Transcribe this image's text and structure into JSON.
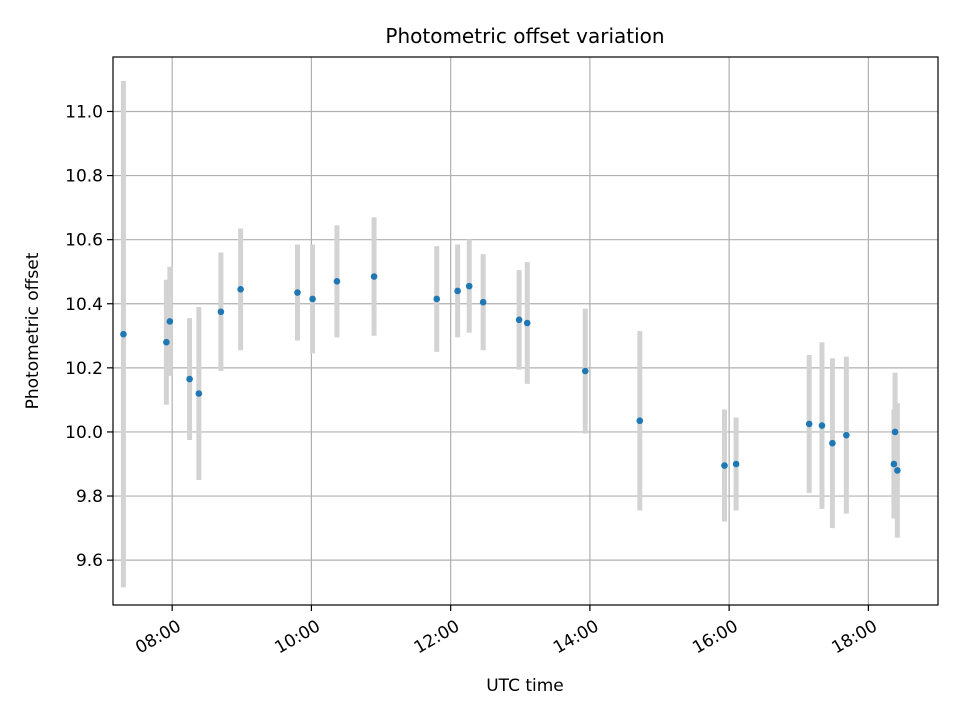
{
  "chart_data": {
    "type": "scatter",
    "title": "Photometric offset variation",
    "xlabel": "UTC time",
    "ylabel": "Photometric offset",
    "x_tick_labels": [
      "08:00",
      "10:00",
      "12:00",
      "14:00",
      "16:00",
      "18:00"
    ],
    "y_tick_labels": [
      "9.6",
      "9.8",
      "10.0",
      "10.2",
      "10.4",
      "10.6",
      "10.8",
      "11.0"
    ],
    "xlim": [
      "07:09",
      "19:00"
    ],
    "ylim": [
      9.46,
      11.17
    ],
    "grid": true,
    "point_color": "#1f77b4",
    "errorbar_color": "#d3d3d3",
    "series": [
      {
        "points": [
          {
            "x": "07:18",
            "y": 10.305,
            "err": 0.79
          },
          {
            "x": "07:55",
            "y": 10.28,
            "err": 0.195
          },
          {
            "x": "07:58",
            "y": 10.345,
            "err": 0.17
          },
          {
            "x": "08:15",
            "y": 10.165,
            "err": 0.19
          },
          {
            "x": "08:23",
            "y": 10.12,
            "err": 0.27
          },
          {
            "x": "08:42",
            "y": 10.375,
            "err": 0.185
          },
          {
            "x": "08:59",
            "y": 10.445,
            "err": 0.19
          },
          {
            "x": "09:48",
            "y": 10.435,
            "err": 0.15
          },
          {
            "x": "10:01",
            "y": 10.415,
            "err": 0.17
          },
          {
            "x": "10:22",
            "y": 10.47,
            "err": 0.175
          },
          {
            "x": "10:54",
            "y": 10.485,
            "err": 0.185
          },
          {
            "x": "11:48",
            "y": 10.415,
            "err": 0.165
          },
          {
            "x": "12:06",
            "y": 10.44,
            "err": 0.145
          },
          {
            "x": "12:16",
            "y": 10.455,
            "err": 0.145
          },
          {
            "x": "12:28",
            "y": 10.405,
            "err": 0.15
          },
          {
            "x": "12:59",
            "y": 10.35,
            "err": 0.155
          },
          {
            "x": "13:06",
            "y": 10.34,
            "err": 0.19
          },
          {
            "x": "13:56",
            "y": 10.19,
            "err": 0.195
          },
          {
            "x": "14:43",
            "y": 10.035,
            "err": 0.28
          },
          {
            "x": "15:56",
            "y": 9.895,
            "err": 0.175
          },
          {
            "x": "16:06",
            "y": 9.9,
            "err": 0.145
          },
          {
            "x": "17:09",
            "y": 10.025,
            "err": 0.215
          },
          {
            "x": "17:20",
            "y": 10.02,
            "err": 0.26
          },
          {
            "x": "17:29",
            "y": 9.965,
            "err": 0.265
          },
          {
            "x": "17:41",
            "y": 9.99,
            "err": 0.245
          },
          {
            "x": "18:22",
            "y": 9.9,
            "err": 0.17
          },
          {
            "x": "18:23",
            "y": 10.0,
            "err": 0.185
          },
          {
            "x": "18:25",
            "y": 9.88,
            "err": 0.21
          }
        ]
      }
    ]
  }
}
